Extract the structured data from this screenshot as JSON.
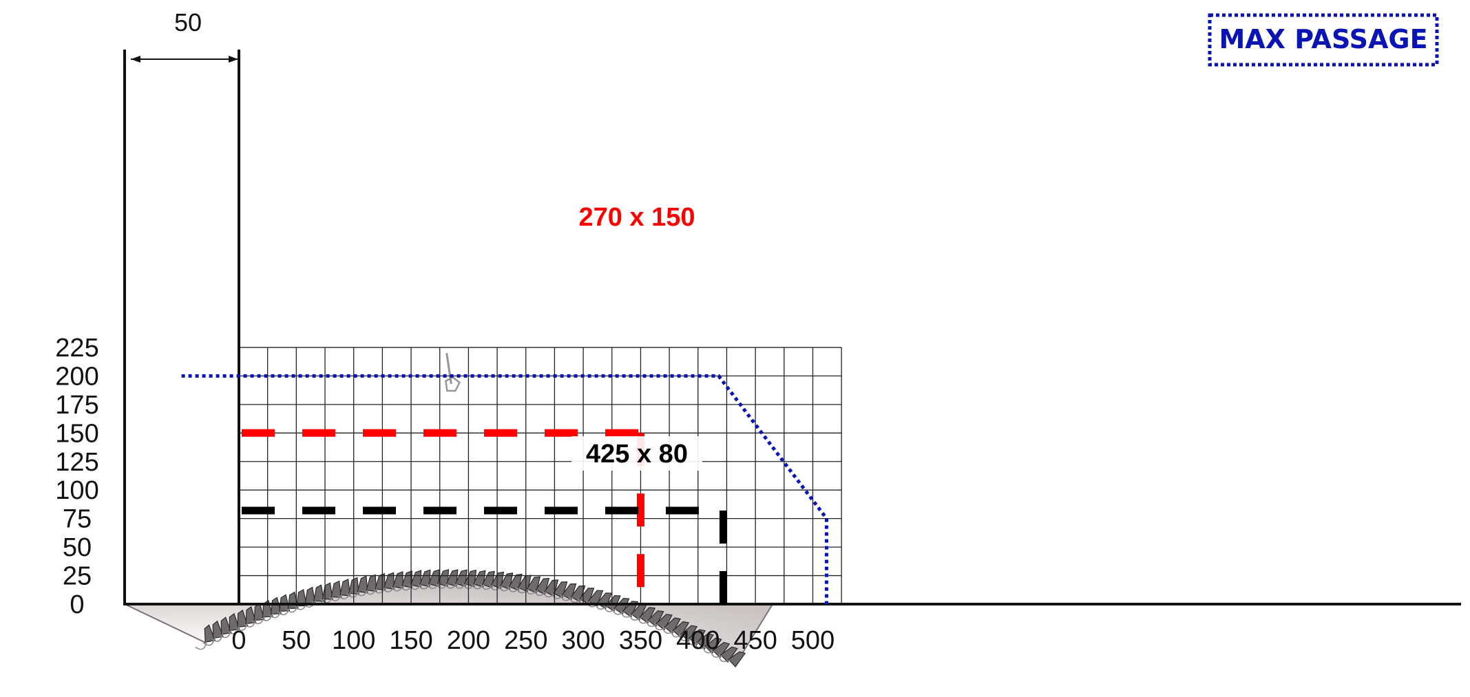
{
  "chart_data": {
    "type": "diagram",
    "x_ticks": [
      "0",
      "50",
      "100",
      "150",
      "200",
      "250",
      "300",
      "350",
      "400",
      "450",
      "500"
    ],
    "y_ticks": [
      "0",
      "25",
      "50",
      "75",
      "100",
      "125",
      "150",
      "175",
      "200",
      "225"
    ],
    "offset_label": "50",
    "blade_diameter_hint": "circular saw blade",
    "cuts": [
      {
        "name": "cut-270x150",
        "label": "270 x 150",
        "x": 350,
        "y": 150,
        "color": "#ff0000"
      },
      {
        "name": "cut-425x80",
        "label": "425 x 80",
        "x": 422,
        "y": 82,
        "color": "#000000"
      }
    ],
    "max_passage": {
      "label": "MAX PASSAGE",
      "color": "#0a14b4",
      "outline": [
        [
          -50,
          200
        ],
        [
          418,
          200
        ],
        [
          512,
          75
        ],
        [
          512,
          0
        ]
      ]
    }
  }
}
